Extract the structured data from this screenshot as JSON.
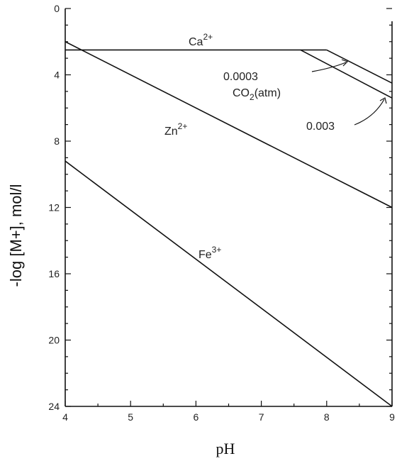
{
  "chart_data": {
    "type": "line",
    "title": "",
    "xlabel": "pH",
    "ylabel": "-log [M+], mol/l",
    "xlim": [
      4,
      9
    ],
    "ylim": [
      0,
      24
    ],
    "y_inverted": true,
    "x_ticks": [
      "4",
      "5",
      "6",
      "7",
      "8",
      "9"
    ],
    "y_ticks": [
      "0",
      "4",
      "8",
      "12",
      "16",
      "20",
      "24"
    ],
    "series": [
      {
        "name": "Ca",
        "label": "Ca2+",
        "x": [
          4,
          8
        ],
        "y": [
          2.5,
          2.5
        ]
      },
      {
        "name": "Ca-0.0003",
        "label": "0.0003",
        "x": [
          8,
          9
        ],
        "y": [
          2.5,
          4.5
        ]
      },
      {
        "name": "Ca-0.003",
        "label": "0.003",
        "x": [
          7.6,
          9
        ],
        "y": [
          2.5,
          5.4
        ]
      },
      {
        "name": "Zn",
        "label": "Zn2+",
        "x": [
          4,
          9
        ],
        "y": [
          2.0,
          12.0
        ]
      },
      {
        "name": "Fe",
        "label": "Fe3+",
        "x": [
          4,
          9
        ],
        "y": [
          9.2,
          24.0
        ]
      }
    ],
    "labels": {
      "ca": "Ca",
      "ca_sup": "2+",
      "zn": "Zn",
      "zn_sup": "2+",
      "fe": "Fe",
      "fe_sup": "3+",
      "co2_prefix": "CO",
      "co2_sub": "2",
      "co2_suffix": "(atm)",
      "c1": "0.0003",
      "c2": "0.003"
    }
  }
}
